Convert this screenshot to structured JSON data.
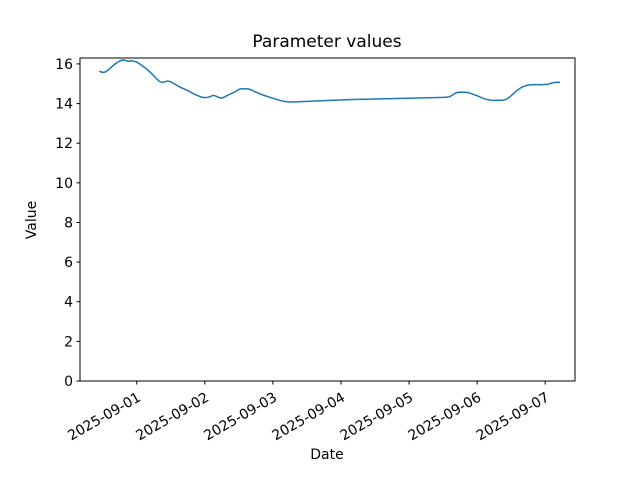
{
  "figure": {
    "title": "Parameter values",
    "xlabel": "Date",
    "ylabel": "Value"
  },
  "chart_data": {
    "type": "line",
    "title": "Parameter values",
    "xlabel": "Date",
    "ylabel": "Value",
    "grid": false,
    "legend": null,
    "line_color": "#1f77b4",
    "axis_color": "#000000",
    "ylim": [
      0,
      16.3
    ],
    "xlim": [
      "2025-08-31 04:00",
      "2025-09-07 10:30"
    ],
    "y_ticks": [
      0,
      2,
      4,
      6,
      8,
      10,
      12,
      14,
      16
    ],
    "x_ticks": [
      "2025-09-01",
      "2025-09-02",
      "2025-09-03",
      "2025-09-04",
      "2025-09-05",
      "2025-09-06",
      "2025-09-07"
    ],
    "x_tick_labels": [
      "2025-09-01",
      "2025-09-02",
      "2025-09-03",
      "2025-09-04",
      "2025-09-05",
      "2025-09-06",
      "2025-09-07"
    ],
    "series": [
      {
        "name": "parameter-values",
        "color": "#1f77b4",
        "points": [
          [
            "2025-08-31 11:00",
            15.62
          ],
          [
            "2025-08-31 12:00",
            15.57
          ],
          [
            "2025-08-31 13:00",
            15.6
          ],
          [
            "2025-08-31 14:00",
            15.7
          ],
          [
            "2025-08-31 15:00",
            15.83
          ],
          [
            "2025-08-31 16:00",
            15.95
          ],
          [
            "2025-08-31 17:00",
            16.07
          ],
          [
            "2025-08-31 18:00",
            16.15
          ],
          [
            "2025-08-31 19:00",
            16.2
          ],
          [
            "2025-08-31 20:00",
            16.18
          ],
          [
            "2025-08-31 21:00",
            16.13
          ],
          [
            "2025-08-31 22:00",
            16.17
          ],
          [
            "2025-08-31 23:00",
            16.14
          ],
          [
            "2025-09-01 00:00",
            16.1
          ],
          [
            "2025-09-01 01:00",
            16.0
          ],
          [
            "2025-09-01 02:00",
            15.9
          ],
          [
            "2025-09-01 03:00",
            15.8
          ],
          [
            "2025-09-01 04:00",
            15.68
          ],
          [
            "2025-09-01 05:00",
            15.55
          ],
          [
            "2025-09-01 06:00",
            15.4
          ],
          [
            "2025-09-01 07:00",
            15.25
          ],
          [
            "2025-09-01 08:00",
            15.12
          ],
          [
            "2025-09-01 09:00",
            15.07
          ],
          [
            "2025-09-01 10:00",
            15.1
          ],
          [
            "2025-09-01 11:00",
            15.14
          ],
          [
            "2025-09-01 12:00",
            15.1
          ],
          [
            "2025-09-01 13:00",
            15.02
          ],
          [
            "2025-09-01 14:00",
            14.93
          ],
          [
            "2025-09-01 15:00",
            14.85
          ],
          [
            "2025-09-01 16:00",
            14.78
          ],
          [
            "2025-09-01 17:00",
            14.72
          ],
          [
            "2025-09-01 18:00",
            14.65
          ],
          [
            "2025-09-01 19:00",
            14.58
          ],
          [
            "2025-09-01 20:00",
            14.5
          ],
          [
            "2025-09-01 21:00",
            14.43
          ],
          [
            "2025-09-01 22:00",
            14.37
          ],
          [
            "2025-09-01 23:00",
            14.32
          ],
          [
            "2025-09-02 00:00",
            14.3
          ],
          [
            "2025-09-02 01:00",
            14.31
          ],
          [
            "2025-09-02 02:00",
            14.36
          ],
          [
            "2025-09-02 03:00",
            14.42
          ],
          [
            "2025-09-02 04:00",
            14.37
          ],
          [
            "2025-09-02 05:00",
            14.3
          ],
          [
            "2025-09-02 06:00",
            14.28
          ],
          [
            "2025-09-02 07:00",
            14.33
          ],
          [
            "2025-09-02 08:00",
            14.42
          ],
          [
            "2025-09-02 09:00",
            14.48
          ],
          [
            "2025-09-02 10:00",
            14.55
          ],
          [
            "2025-09-02 11:00",
            14.63
          ],
          [
            "2025-09-02 12:00",
            14.71
          ],
          [
            "2025-09-02 13:00",
            14.75
          ],
          [
            "2025-09-02 14:00",
            14.74
          ],
          [
            "2025-09-02 15:00",
            14.75
          ],
          [
            "2025-09-02 16:00",
            14.71
          ],
          [
            "2025-09-02 17:00",
            14.65
          ],
          [
            "2025-09-02 18:00",
            14.58
          ],
          [
            "2025-09-02 19:00",
            14.52
          ],
          [
            "2025-09-02 20:00",
            14.46
          ],
          [
            "2025-09-02 21:00",
            14.41
          ],
          [
            "2025-09-02 22:00",
            14.36
          ],
          [
            "2025-09-02 23:00",
            14.31
          ],
          [
            "2025-09-03 00:00",
            14.27
          ],
          [
            "2025-09-03 01:00",
            14.22
          ],
          [
            "2025-09-03 02:00",
            14.18
          ],
          [
            "2025-09-03 03:00",
            14.14
          ],
          [
            "2025-09-03 04:00",
            14.11
          ],
          [
            "2025-09-03 05:00",
            14.09
          ],
          [
            "2025-09-03 06:00",
            14.08
          ],
          [
            "2025-09-03 09:00",
            14.09
          ],
          [
            "2025-09-03 12:00",
            14.11
          ],
          [
            "2025-09-03 15:00",
            14.13
          ],
          [
            "2025-09-03 18:00",
            14.15
          ],
          [
            "2025-09-03 21:00",
            14.17
          ],
          [
            "2025-09-04 00:00",
            14.18
          ],
          [
            "2025-09-04 03:00",
            14.2
          ],
          [
            "2025-09-04 06:00",
            14.21
          ],
          [
            "2025-09-04 09:00",
            14.22
          ],
          [
            "2025-09-04 12:00",
            14.23
          ],
          [
            "2025-09-04 15:00",
            14.24
          ],
          [
            "2025-09-04 18:00",
            14.25
          ],
          [
            "2025-09-04 21:00",
            14.26
          ],
          [
            "2025-09-05 00:00",
            14.27
          ],
          [
            "2025-09-05 03:00",
            14.28
          ],
          [
            "2025-09-05 06:00",
            14.29
          ],
          [
            "2025-09-05 09:00",
            14.3
          ],
          [
            "2025-09-05 12:00",
            14.31
          ],
          [
            "2025-09-05 14:00",
            14.33
          ],
          [
            "2025-09-05 15:00",
            14.4
          ],
          [
            "2025-09-05 16:00",
            14.5
          ],
          [
            "2025-09-05 17:00",
            14.56
          ],
          [
            "2025-09-05 18:00",
            14.58
          ],
          [
            "2025-09-05 19:00",
            14.57
          ],
          [
            "2025-09-05 20:00",
            14.57
          ],
          [
            "2025-09-05 21:00",
            14.55
          ],
          [
            "2025-09-05 22:00",
            14.5
          ],
          [
            "2025-09-05 23:00",
            14.45
          ],
          [
            "2025-09-06 00:00",
            14.4
          ],
          [
            "2025-09-06 01:00",
            14.33
          ],
          [
            "2025-09-06 02:00",
            14.27
          ],
          [
            "2025-09-06 03:00",
            14.22
          ],
          [
            "2025-09-06 04:00",
            14.19
          ],
          [
            "2025-09-06 05:00",
            14.17
          ],
          [
            "2025-09-06 06:00",
            14.16
          ],
          [
            "2025-09-06 07:00",
            14.16
          ],
          [
            "2025-09-06 08:00",
            14.17
          ],
          [
            "2025-09-06 09:00",
            14.17
          ],
          [
            "2025-09-06 10:00",
            14.2
          ],
          [
            "2025-09-06 11:00",
            14.28
          ],
          [
            "2025-09-06 12:00",
            14.4
          ],
          [
            "2025-09-06 13:00",
            14.53
          ],
          [
            "2025-09-06 14:00",
            14.65
          ],
          [
            "2025-09-06 15:00",
            14.76
          ],
          [
            "2025-09-06 16:00",
            14.84
          ],
          [
            "2025-09-06 17:00",
            14.89
          ],
          [
            "2025-09-06 18:00",
            14.93
          ],
          [
            "2025-09-06 19:00",
            14.95
          ],
          [
            "2025-09-06 20:00",
            14.96
          ],
          [
            "2025-09-06 21:00",
            14.96
          ],
          [
            "2025-09-06 22:00",
            14.95
          ],
          [
            "2025-09-06 23:00",
            14.96
          ],
          [
            "2025-09-07 00:00",
            14.97
          ],
          [
            "2025-09-07 01:00",
            14.98
          ],
          [
            "2025-09-07 02:00",
            15.02
          ],
          [
            "2025-09-07 03:00",
            15.06
          ],
          [
            "2025-09-07 04:00",
            15.08
          ],
          [
            "2025-09-07 05:00",
            15.08
          ]
        ]
      }
    ]
  }
}
